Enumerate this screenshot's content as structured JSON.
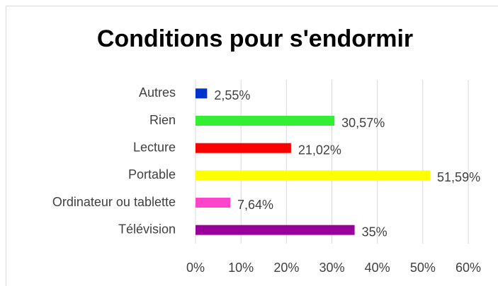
{
  "chart_data": {
    "type": "barh",
    "title": "Conditions pour s'endormir",
    "categories": [
      "Autres",
      "Rien",
      "Lecture",
      "Portable",
      "Ordinateur ou tablette",
      "Télévision"
    ],
    "values": [
      2.55,
      30.57,
      21.02,
      51.59,
      7.64,
      35
    ],
    "value_labels": [
      "2,55%",
      "30,57%",
      "21,02%",
      "51,59%",
      "7,64%",
      "35%"
    ],
    "colors": [
      "#0033cc",
      "#33ee33",
      "#ff0000",
      "#ffff00",
      "#ff44cc",
      "#990099"
    ],
    "xlim": [
      0,
      60
    ],
    "xticks": [
      {
        "value": 0,
        "label": "0%"
      },
      {
        "value": 10,
        "label": "10%"
      },
      {
        "value": 20,
        "label": "20%"
      },
      {
        "value": 30,
        "label": "30%"
      },
      {
        "value": 40,
        "label": "40%"
      },
      {
        "value": 50,
        "label": "50%"
      },
      {
        "value": 60,
        "label": "60%"
      }
    ],
    "grid": true
  }
}
